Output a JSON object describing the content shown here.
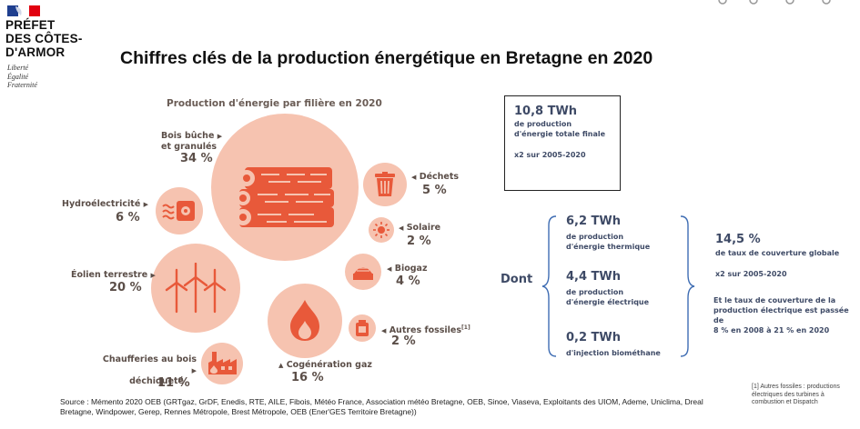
{
  "header": {
    "logo_line1": "PRÉFET",
    "logo_line2": "DES CÔTES-",
    "logo_line3": "D'ARMOR",
    "motto1": "Liberté",
    "motto2": "Égalité",
    "motto3": "Fraternité"
  },
  "title": "Chiffres clés de la production énergétique en Bretagne en 2020",
  "subtitle": "Production d'énergie par filière en  2020",
  "colors": {
    "circle": "#f6c3b0",
    "icon": "#e8593a",
    "text": "#5b4e48",
    "blue_text": "#3e4a66"
  },
  "sectors": [
    {
      "label_line1": "Bois bûche",
      "label_line2": "et granulés",
      "value": "34 %",
      "icon": "logs-icon"
    },
    {
      "label_line1": "Déchets",
      "label_line2": "",
      "value": "5 %",
      "icon": "trash-icon"
    },
    {
      "label_line1": "Hydroélectricité",
      "label_line2": "",
      "value": "6 %",
      "icon": "hydro-icon"
    },
    {
      "label_line1": "Solaire",
      "label_line2": "",
      "value": "2 %",
      "icon": "sun-icon"
    },
    {
      "label_line1": "Biogaz",
      "label_line2": "",
      "value": "4 %",
      "icon": "biogas-icon"
    },
    {
      "label_line1": "Éolien terrestre",
      "label_line2": "",
      "value": "20 %",
      "icon": "wind-turbine-icon"
    },
    {
      "label_line1": "Autres fossiles",
      "label_sup": "[1]",
      "value": "2 %",
      "icon": "fuel-can-icon"
    },
    {
      "label_line1": "Cogénération gaz",
      "label_line2": "",
      "value": "16 %",
      "icon": "flame-icon"
    },
    {
      "label_line1": "Chaufferies au bois",
      "label_line2": "déchiqueté",
      "value": "11 %",
      "icon": "factory-icon"
    }
  ],
  "total_box": {
    "value": "10,8 TWh",
    "line1": "de production",
    "line2": "d'énergie totale finale",
    "growth": "x2 sur 2005-2020"
  },
  "dont": {
    "label": "Dont",
    "items": [
      {
        "value": "6,2 TWh",
        "line1": "de production",
        "line2": "d'énergie thermique"
      },
      {
        "value": "4,4 TWh",
        "line1": "de production",
        "line2": "d'énergie électrique"
      },
      {
        "value": "0,2 TWh",
        "line1": "d'injection biométhane",
        "line2": ""
      }
    ]
  },
  "coverage": {
    "value": "14,5 %",
    "line1": "de taux de couverture globale",
    "growth": "x2 sur 2005-2020",
    "note1": "Et le taux de couverture de la",
    "note2": "production électrique est passée de",
    "note3": "8 % en 2008 à 21 % en 2020"
  },
  "source": "Source : Mémento 2020 OEB (GRTgaz, GrDF, Enedis, RTE, AILE, Fibois, Météo France, Association météo Bretagne, OEB, Sinoe, Viaseva, Exploitants des UIOM, Ademe, Uniclima, Dreal Bretagne, Windpower, Gerep, Rennes Métropole, Brest Métropole, OEB (Ener'GES Territoire Bretagne))",
  "footnote": "[1] Autres fossiles : productions électriques des turbines à combustion et Dispatch"
}
